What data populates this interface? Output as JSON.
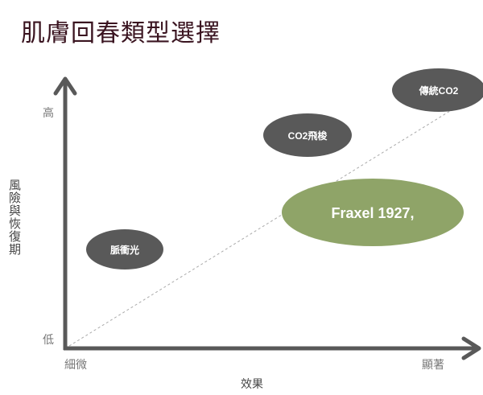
{
  "title": "肌膚回春類型選擇",
  "y_axis": {
    "label": "風險與恢復期",
    "high": "高",
    "low": "低"
  },
  "x_axis": {
    "label": "效果",
    "low": "細微",
    "high": "顯著"
  },
  "items": [
    {
      "label": "傳統CO2",
      "color": "#595959"
    },
    {
      "label": "CO2飛梭",
      "color": "#595959"
    },
    {
      "label": "Fraxel 1927,",
      "color": "#8fa468"
    },
    {
      "label": "脈衝光",
      "color": "#595959"
    }
  ],
  "colors": {
    "axis": "#595959",
    "title": "#3a1420"
  }
}
